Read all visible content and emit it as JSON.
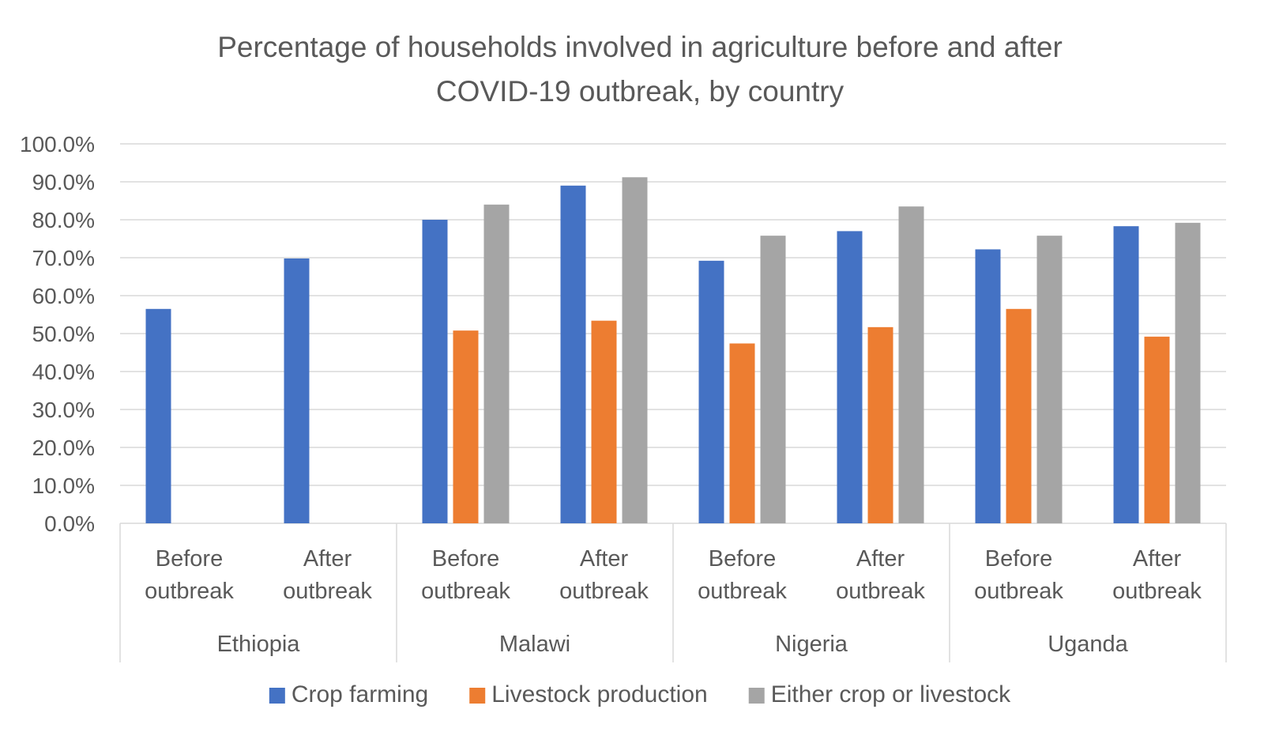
{
  "chart_data": {
    "type": "bar",
    "title": "Percentage of households involved in agriculture before and after",
    "title_line2": "COVID-19 outbreak, by country",
    "ylim": [
      0,
      100
    ],
    "ytick_step": 10,
    "ytick_format": "%.1f%",
    "grid": true,
    "legend_position": "bottom",
    "groups": [
      "Ethiopia",
      "Malawi",
      "Nigeria",
      "Uganda"
    ],
    "subcategories": [
      "Before outbreak",
      "After outbreak"
    ],
    "categories": [
      "Ethiopia - Before outbreak",
      "Ethiopia - After outbreak",
      "Malawi - Before outbreak",
      "Malawi - After outbreak",
      "Nigeria - Before outbreak",
      "Nigeria - After outbreak",
      "Uganda - Before outbreak",
      "Uganda - After outbreak"
    ],
    "series": [
      {
        "name": "Crop farming",
        "color": "#4472C4",
        "values": [
          56.5,
          69.8,
          80.0,
          89.0,
          69.2,
          77.0,
          72.2,
          78.3
        ]
      },
      {
        "name": "Livestock production",
        "color": "#ED7D31",
        "values": [
          null,
          null,
          50.8,
          53.4,
          47.4,
          51.7,
          56.5,
          49.2
        ]
      },
      {
        "name": "Either crop or livestock",
        "color": "#A5A5A5",
        "values": [
          null,
          null,
          84.0,
          91.2,
          75.8,
          83.5,
          75.8,
          79.2
        ]
      }
    ]
  }
}
